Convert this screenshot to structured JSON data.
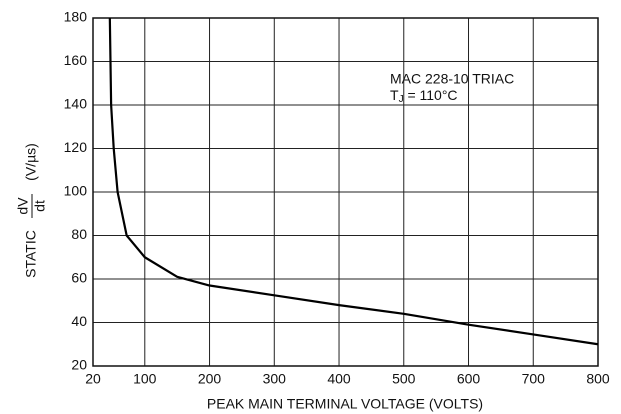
{
  "chart_data": {
    "type": "line",
    "x_label": "PEAK MAIN TERMINAL VOLTAGE (VOLTS)",
    "y_label": {
      "prefix": "STATIC",
      "numerator": "dV",
      "denominator": "dt",
      "unit": "(V/µs)"
    },
    "annotation": {
      "line1": "MAC 228-10 TRIAC",
      "symbol": "T",
      "subscript": "J",
      "rest": " = 110°C"
    },
    "x": [
      46,
      47,
      48,
      52,
      58,
      72,
      100,
      150,
      200,
      300,
      400,
      500,
      600,
      700,
      800
    ],
    "series": [
      {
        "color": "#000000",
        "values": [
          180,
          160,
          140,
          120,
          100,
          80,
          70,
          61,
          57,
          52.5,
          48,
          44,
          39,
          34.5,
          30
        ]
      }
    ],
    "xlim": [
      20,
      800
    ],
    "xticks": [
      20,
      100,
      200,
      300,
      400,
      500,
      600,
      700,
      800
    ],
    "ylim": [
      20,
      180
    ],
    "yticks": [
      20,
      40,
      60,
      80,
      100,
      120,
      140,
      160,
      180
    ],
    "grid": true
  }
}
